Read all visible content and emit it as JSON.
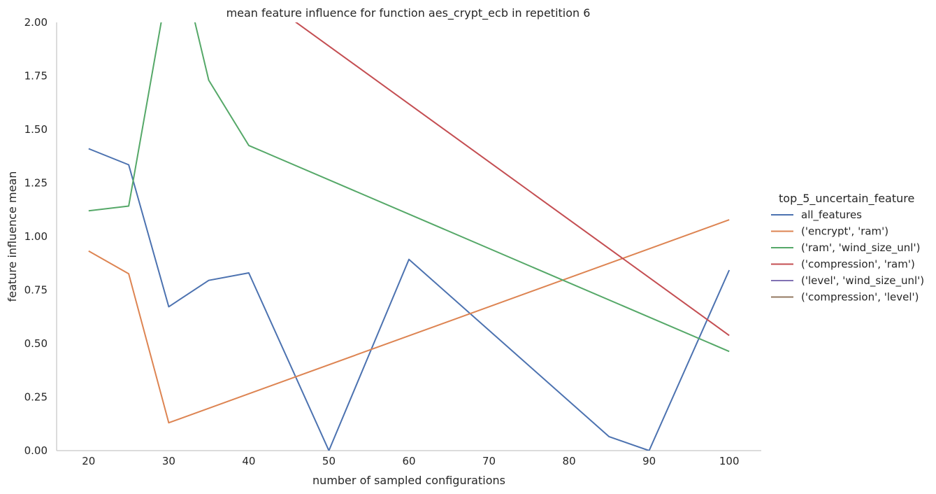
{
  "chart_data": {
    "type": "line",
    "title": "mean feature influence for function aes_crypt_ecb in repetition 6",
    "xlabel": "number of sampled configurations",
    "ylabel": "feature influence mean",
    "xlim": [
      16,
      104
    ],
    "ylim": [
      0,
      2
    ],
    "xticks": [
      "20",
      "30",
      "40",
      "50",
      "60",
      "70",
      "80",
      "90",
      "100"
    ],
    "yticks": [
      "0.00",
      "0.25",
      "0.50",
      "0.75",
      "1.00",
      "1.25",
      "1.50",
      "1.75",
      "2.00"
    ],
    "grid": false,
    "legend_title": "top_5_uncertain_feature",
    "legend_position": "right",
    "series": [
      {
        "name": "all_features",
        "color": "#4c72b0",
        "points": [
          [
            20,
            1.41
          ],
          [
            25,
            1.335
          ],
          [
            30,
            0.672
          ],
          [
            35,
            0.795
          ],
          [
            40,
            0.83
          ],
          [
            50,
            0.0
          ],
          [
            60,
            0.893
          ],
          [
            85,
            0.065
          ],
          [
            90,
            0.0
          ],
          [
            100,
            0.843
          ]
        ]
      },
      {
        "name": "('encrypt', 'ram')",
        "color": "#dd8452",
        "points": [
          [
            20,
            0.932
          ],
          [
            25,
            0.826
          ],
          [
            30,
            0.13
          ],
          [
            100,
            1.078
          ]
        ]
      },
      {
        "name": "('ram', 'wind_size_unl')",
        "color": "#55a868",
        "points": [
          [
            20,
            1.12
          ],
          [
            25,
            1.142
          ],
          [
            30,
            2.2
          ],
          [
            32,
            2.2
          ],
          [
            35,
            1.73
          ],
          [
            40,
            1.425
          ],
          [
            100,
            0.463
          ]
        ]
      },
      {
        "name": "('compression', 'ram')",
        "color": "#c44e52",
        "points": [
          [
            30,
            2.43
          ],
          [
            100,
            0.538
          ]
        ]
      },
      {
        "name": "('level', 'wind_size_unl')",
        "color": "#8172b3",
        "points": []
      },
      {
        "name": "('compression', 'level')",
        "color": "#937860",
        "points": []
      }
    ]
  }
}
